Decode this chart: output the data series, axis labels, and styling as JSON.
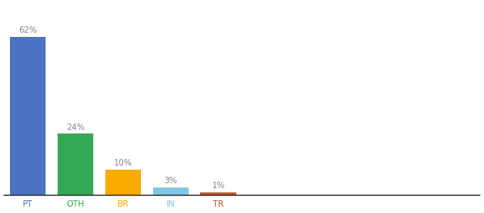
{
  "categories": [
    "PT",
    "OTH",
    "BR",
    "IN",
    "TR"
  ],
  "values": [
    62,
    24,
    10,
    3,
    1
  ],
  "labels": [
    "62%",
    "24%",
    "10%",
    "3%",
    "1%"
  ],
  "bar_colors": [
    "#4C72C4",
    "#34A853",
    "#F9AB00",
    "#7EC8E3",
    "#C0522B"
  ],
  "tick_colors": [
    "#4C72C4",
    "#34A853",
    "#F9AB00",
    "#7EC8E3",
    "#C0522B"
  ],
  "background_color": "#ffffff",
  "ylim": [
    0,
    75
  ],
  "xlim": [
    -0.5,
    9.5
  ],
  "label_fontsize": 8.5,
  "tick_fontsize": 8.5,
  "bar_width": 0.75,
  "label_color": "#888888"
}
